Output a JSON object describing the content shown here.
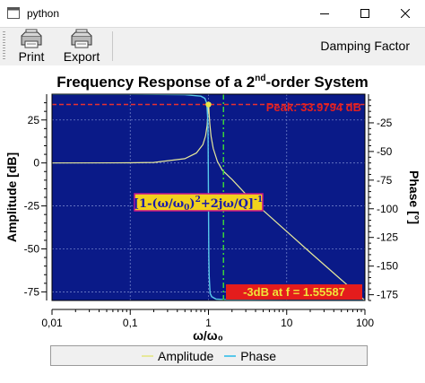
{
  "window": {
    "title": "python"
  },
  "toolbar": {
    "print_label": "Print",
    "export_label": "Export",
    "damping_label": "Damping Factor"
  },
  "chart_data": {
    "type": "line",
    "title_main": "Frequency Response of a 2",
    "title_sup": "nd",
    "title_rest": "-order System",
    "xlabel": "ω/ω₀",
    "ylabel_left": "Amplitude [dB]",
    "ylabel_right": "Phase [°]",
    "x_scale": "log",
    "xlim": [
      0.01,
      100
    ],
    "ylim_left": [
      -80,
      40
    ],
    "ylim_right": [
      -180,
      0
    ],
    "x_ticks": [
      0.01,
      0.1,
      1,
      10,
      100
    ],
    "x_tick_labels": [
      "0,01",
      "0,1",
      "1",
      "10",
      "100"
    ],
    "y_left_ticks": [
      25,
      0,
      -25,
      -50,
      -75
    ],
    "y_left_tick_labels": [
      "25",
      "0",
      "-25",
      "-50",
      "-75"
    ],
    "y_right_ticks": [
      -25,
      -50,
      -75,
      -100,
      -125,
      -150,
      -175
    ],
    "y_right_tick_labels": [
      "-25",
      "-50",
      "-75",
      "-100",
      "-125",
      "-150",
      "-175"
    ],
    "background": "#0a1a88",
    "grid": true,
    "series": [
      {
        "name": "Amplitude",
        "axis": "left",
        "color": "#e6e89a",
        "x": [
          0.01,
          0.1,
          0.2,
          0.5,
          0.7,
          0.85,
          0.92,
          0.96,
          0.98,
          0.99,
          1.0,
          1.01,
          1.02,
          1.04,
          1.08,
          1.15,
          1.3,
          1.5,
          2,
          3,
          5,
          10,
          20,
          50,
          100
        ],
        "y": [
          0,
          0.1,
          0.3,
          2.5,
          5.8,
          10.7,
          15.8,
          21.8,
          27.6,
          31.9,
          33.98,
          32.1,
          28.3,
          22.8,
          15.5,
          8.5,
          1.0,
          -4.2,
          -9.6,
          -18.1,
          -27.6,
          -39.9,
          -52.1,
          -68.0,
          -80.0
        ]
      },
      {
        "name": "Phase",
        "axis": "right",
        "color": "#58c8ea",
        "x": [
          0.01,
          0.1,
          0.5,
          0.8,
          0.9,
          0.95,
          0.98,
          0.99,
          1.0,
          1.01,
          1.02,
          1.05,
          1.1,
          1.25,
          2,
          10,
          100
        ],
        "y": [
          0,
          -0.1,
          -0.5,
          -1.7,
          -3.6,
          -7.8,
          -21.3,
          -38.7,
          -90,
          -141.3,
          -158.7,
          -173.7,
          -176.6,
          -178.8,
          -179.7,
          -180,
          -180
        ]
      }
    ],
    "annotations": {
      "peak_text": "Peak: 33.9794 dB",
      "peak_value": 33.9794,
      "peak_x": 1.0,
      "cutoff_text": "-3dB at f = 1.55587",
      "cutoff_x": 1.55587,
      "formula_base": "[1-(ω/ω",
      "formula_sub1": "0",
      "formula_mid": ")",
      "formula_sup1": "2",
      "formula_mid2": "+2jω/Q]",
      "formula_sup2": "-1"
    },
    "legend": [
      "Amplitude",
      "Phase"
    ],
    "legend_position": "bottom"
  }
}
